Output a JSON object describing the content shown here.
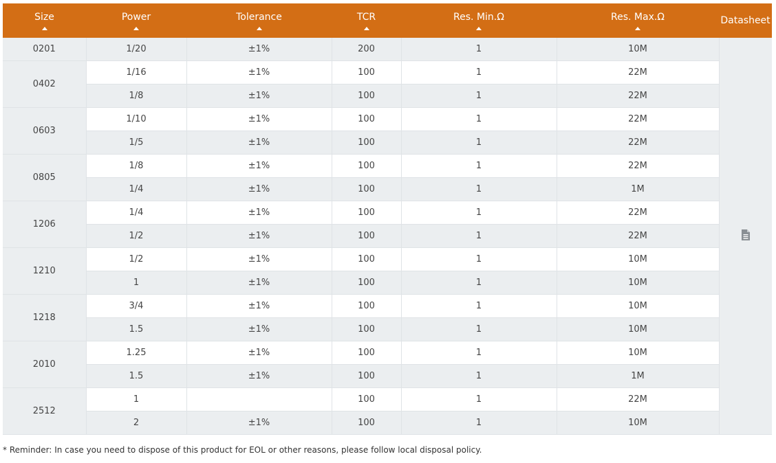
{
  "table": {
    "headers": [
      "Size",
      "Power",
      "Tolerance",
      "TCR",
      "Res. Min.Ω",
      "Res. Max.Ω",
      "Datasheet"
    ],
    "groups": [
      {
        "size": "0201",
        "rows": [
          [
            "1/20",
            "±1%",
            "200",
            "1",
            "10M"
          ]
        ]
      },
      {
        "size": "0402",
        "rows": [
          [
            "1/16",
            "±1%",
            "100",
            "1",
            "22M"
          ],
          [
            "1/8",
            "±1%",
            "100",
            "1",
            "22M"
          ]
        ]
      },
      {
        "size": "0603",
        "rows": [
          [
            "1/10",
            "±1%",
            "100",
            "1",
            "22M"
          ],
          [
            "1/5",
            "±1%",
            "100",
            "1",
            "22M"
          ]
        ]
      },
      {
        "size": "0805",
        "rows": [
          [
            "1/8",
            "±1%",
            "100",
            "1",
            "22M"
          ],
          [
            "1/4",
            "±1%",
            "100",
            "1",
            "1M"
          ]
        ]
      },
      {
        "size": "1206",
        "rows": [
          [
            "1/4",
            "±1%",
            "100",
            "1",
            "22M"
          ],
          [
            "1/2",
            "±1%",
            "100",
            "1",
            "22M"
          ]
        ]
      },
      {
        "size": "1210",
        "rows": [
          [
            "1/2",
            "±1%",
            "100",
            "1",
            "10M"
          ],
          [
            "1",
            "±1%",
            "100",
            "1",
            "10M"
          ]
        ]
      },
      {
        "size": "1218",
        "rows": [
          [
            "3/4",
            "±1%",
            "100",
            "1",
            "10M"
          ],
          [
            "1.5",
            "±1%",
            "100",
            "1",
            "10M"
          ]
        ]
      },
      {
        "size": "2010",
        "rows": [
          [
            "1.25",
            "±1%",
            "100",
            "1",
            "10M"
          ],
          [
            "1.5",
            "±1%",
            "100",
            "1",
            "1M"
          ]
        ]
      },
      {
        "size": "2512",
        "rows": [
          [
            "1",
            null,
            "100",
            "1",
            "22M"
          ],
          [
            "2",
            "±1%",
            "100",
            "1",
            "10M"
          ]
        ]
      }
    ]
  },
  "reminder": "* Reminder: In case you need to dispose of this product for EOL or other reasons, please follow local disposal policy."
}
